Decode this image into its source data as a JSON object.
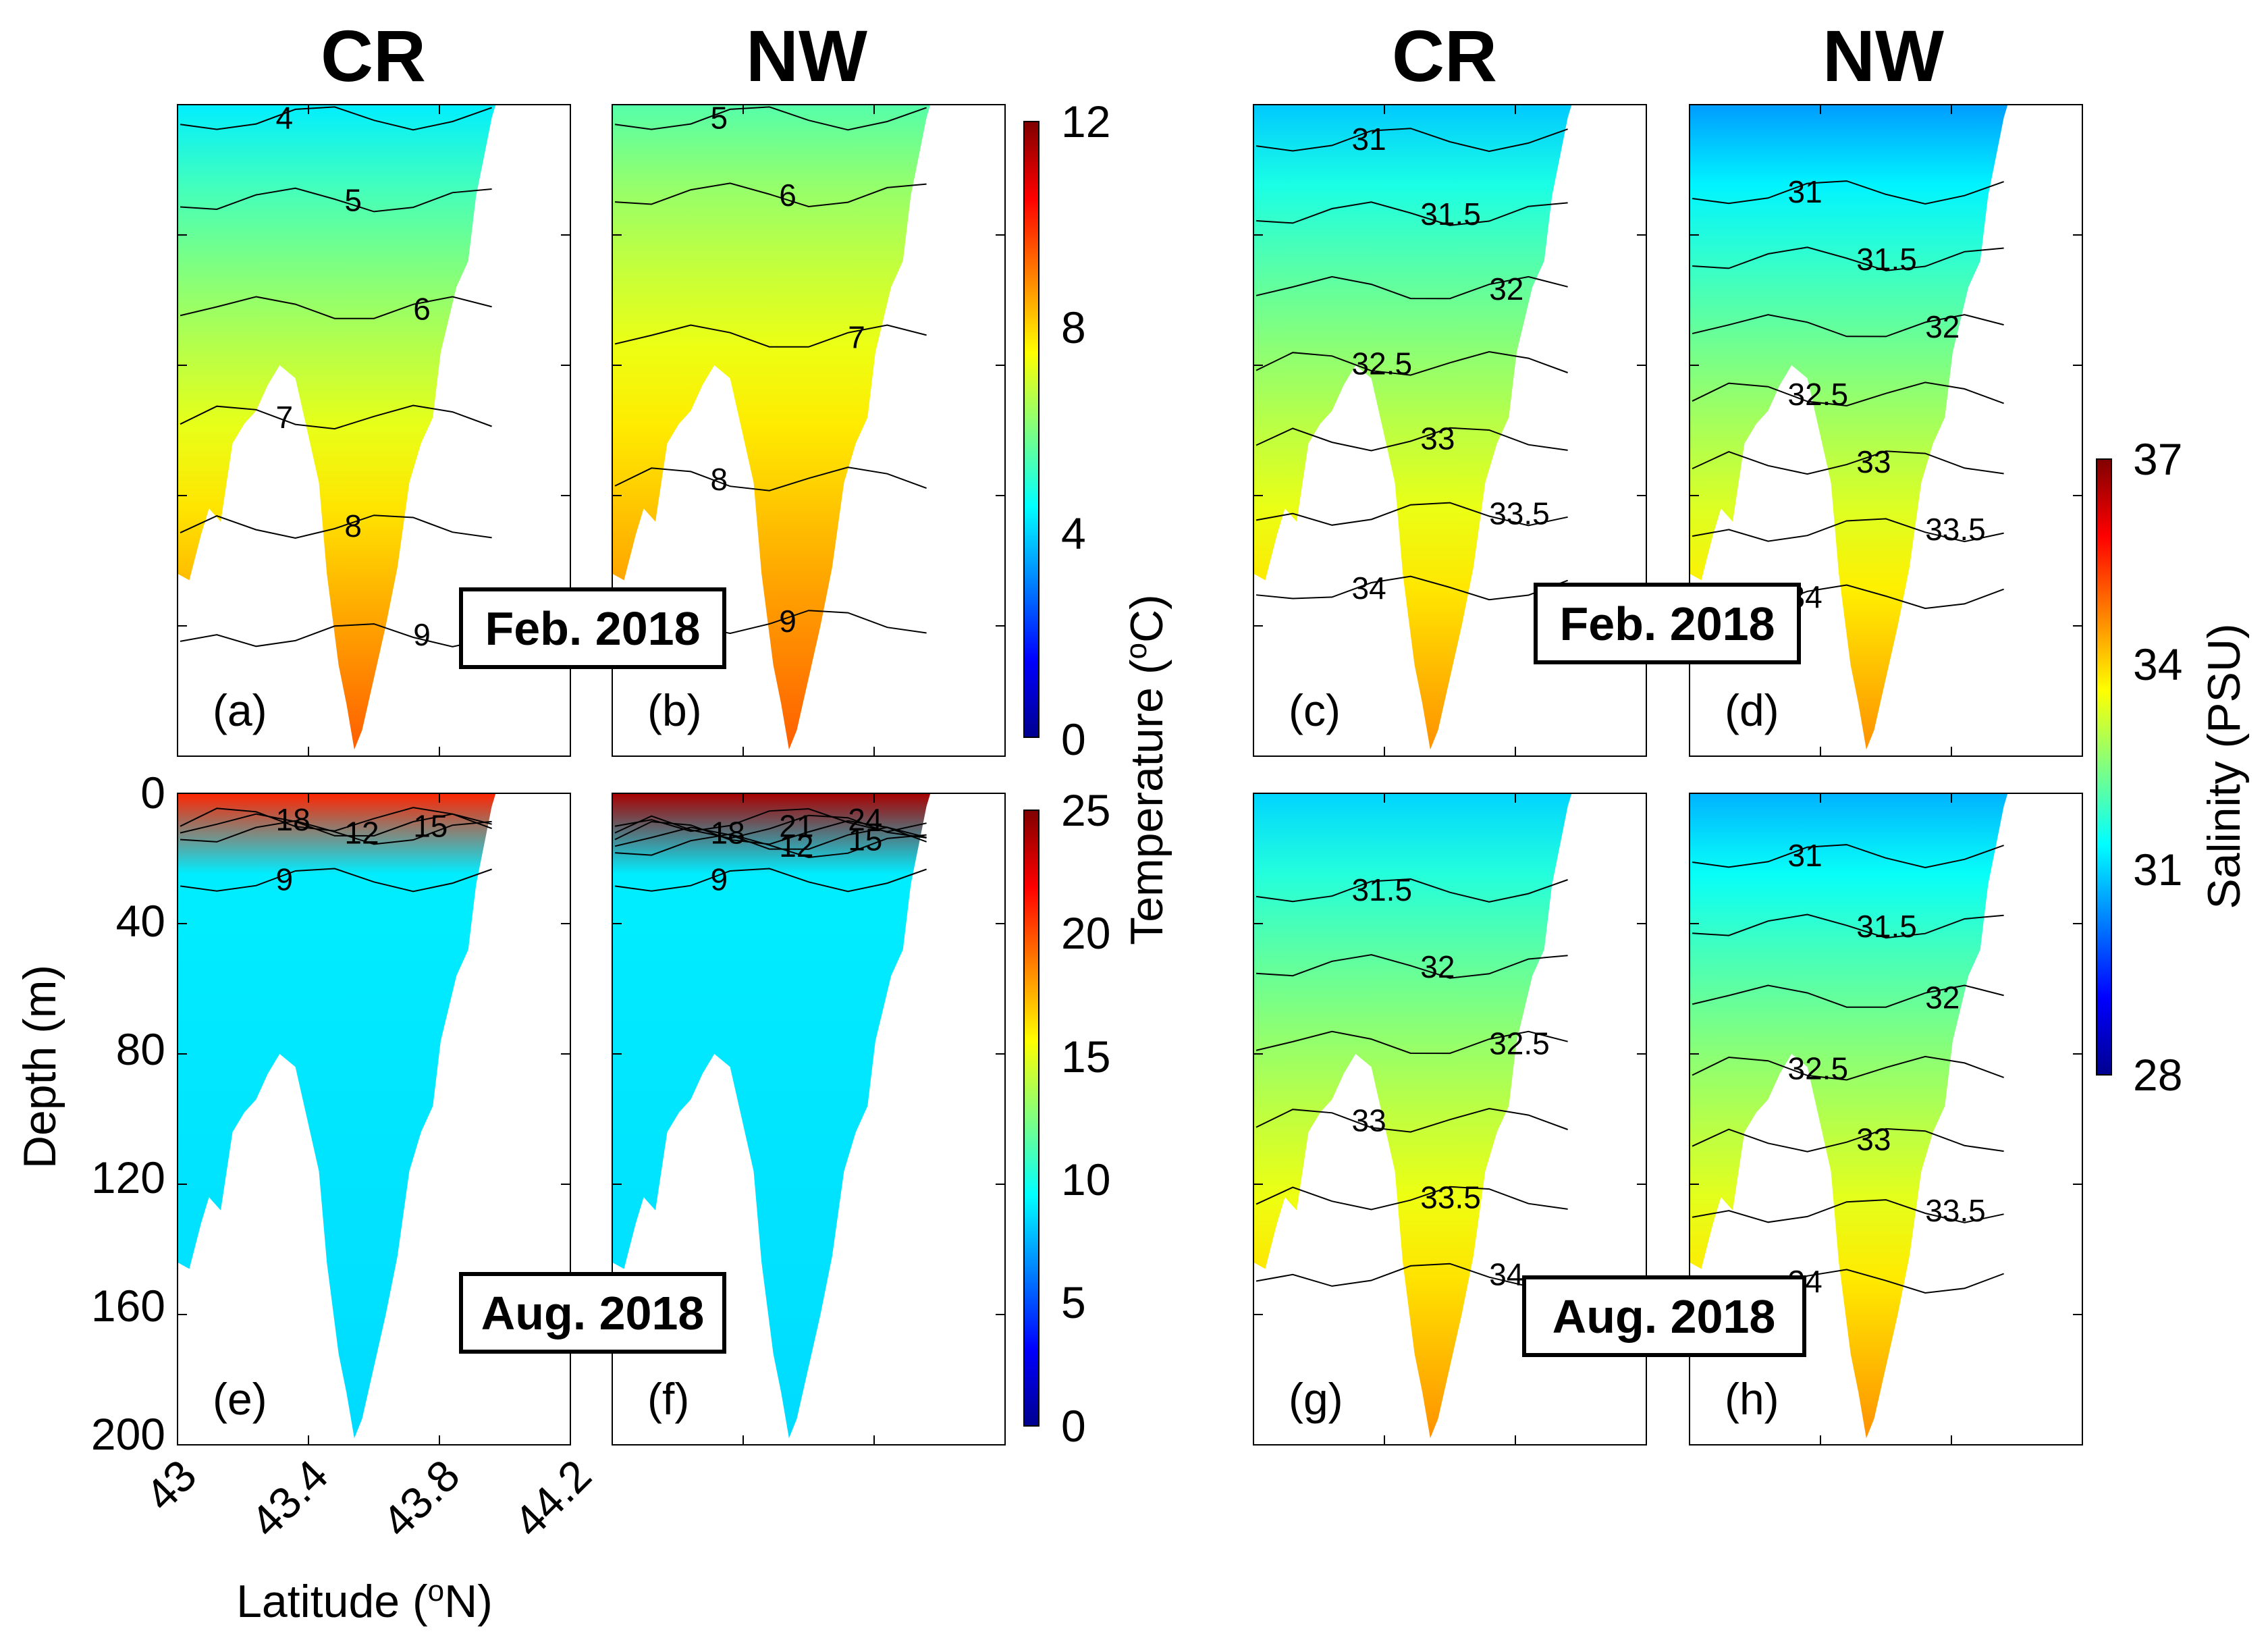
{
  "columns": [
    "CR",
    "NW",
    "CR",
    "NW"
  ],
  "date_labels": [
    "Feb. 2018",
    "Aug. 2018"
  ],
  "colors": {
    "colormap": [
      "#00008f",
      "#0000ff",
      "#0080ff",
      "#00ffff",
      "#80ff80",
      "#ffff00",
      "#ff8000",
      "#ff0000",
      "#800000"
    ],
    "contour": "#000000",
    "axes": "#000000"
  },
  "chart_data": [
    {
      "type": "heatmap",
      "panel": "(a)",
      "variable": "temperature",
      "month": "Feb. 2018",
      "transect": "CR",
      "contours": [
        4,
        5,
        6,
        7,
        8,
        9
      ],
      "clim": [
        0,
        12
      ],
      "surface_mean": 4.3,
      "bottom_max": 9.4
    },
    {
      "type": "heatmap",
      "panel": "(b)",
      "variable": "temperature",
      "month": "Feb. 2018",
      "transect": "NW",
      "contours": [
        5,
        6,
        7,
        8,
        9
      ],
      "clim": [
        0,
        12
      ],
      "surface_mean": 5.5,
      "bottom_max": 9.4
    },
    {
      "type": "heatmap",
      "panel": "(c)",
      "variable": "salinity",
      "month": "Feb. 2018",
      "transect": "CR",
      "contours": [
        31,
        31.5,
        32,
        32.5,
        33,
        33.5,
        34
      ],
      "clim": [
        28,
        37
      ],
      "surface_mean": 30.9,
      "bottom_max": 34.6
    },
    {
      "type": "heatmap",
      "panel": "(d)",
      "variable": "salinity",
      "month": "Feb. 2018",
      "transect": "NW",
      "contours": [
        31,
        31.5,
        32,
        32.5,
        33,
        33.5,
        34
      ],
      "clim": [
        28,
        37
      ],
      "surface_mean": 30.5,
      "bottom_max": 34.6
    },
    {
      "type": "heatmap",
      "panel": "(e)",
      "variable": "temperature",
      "month": "Aug. 2018",
      "transect": "CR",
      "contours": [
        9,
        12,
        15,
        18
      ],
      "clim": [
        0,
        25
      ],
      "surface_mean": 21,
      "bottom_max": 9
    },
    {
      "type": "heatmap",
      "panel": "(f)",
      "variable": "temperature",
      "month": "Aug. 2018",
      "transect": "NW",
      "contours": [
        9,
        12,
        15,
        18,
        21,
        24
      ],
      "clim": [
        0,
        25
      ],
      "surface_mean": 24,
      "bottom_max": 9
    },
    {
      "type": "heatmap",
      "panel": "(g)",
      "variable": "salinity",
      "month": "Aug. 2018",
      "transect": "CR",
      "contours": [
        31.5,
        32,
        32.5,
        33,
        33.5,
        34
      ],
      "clim": [
        28,
        37
      ],
      "surface_mean": 31,
      "bottom_max": 34.6
    },
    {
      "type": "heatmap",
      "panel": "(h)",
      "variable": "salinity",
      "month": "Aug. 2018",
      "transect": "NW",
      "contours": [
        31,
        31.5,
        32,
        32.5,
        33,
        33.5,
        34
      ],
      "clim": [
        28,
        37
      ],
      "surface_mean": 30.7,
      "bottom_max": 34.6
    }
  ],
  "axes": {
    "ylabel": "Depth (m)",
    "yticks": [
      "0",
      "40",
      "80",
      "120",
      "160",
      "200"
    ],
    "ylim": [
      0,
      200
    ],
    "xlabel_pre": "Latitude (",
    "xlabel_sup": "o",
    "xlabel_post": "N)",
    "xticks": [
      "43",
      "43.4",
      "43.8",
      "44.2"
    ],
    "xlim": [
      43,
      44.2
    ]
  },
  "colorbars": {
    "temp_feb": {
      "ticks": [
        "0",
        "4",
        "8",
        "12"
      ],
      "range": [
        0,
        12
      ]
    },
    "temp_aug": {
      "ticks": [
        "0",
        "5",
        "10",
        "15",
        "20",
        "25"
      ],
      "range": [
        0,
        25
      ]
    },
    "temp_label_pre": "Temperature (",
    "temp_label_sup": "o",
    "temp_label_post": "C)",
    "sal": {
      "ticks": [
        "28",
        "31",
        "34",
        "37"
      ],
      "range": [
        28,
        37
      ]
    },
    "sal_label": "Salinity (PSU)"
  }
}
